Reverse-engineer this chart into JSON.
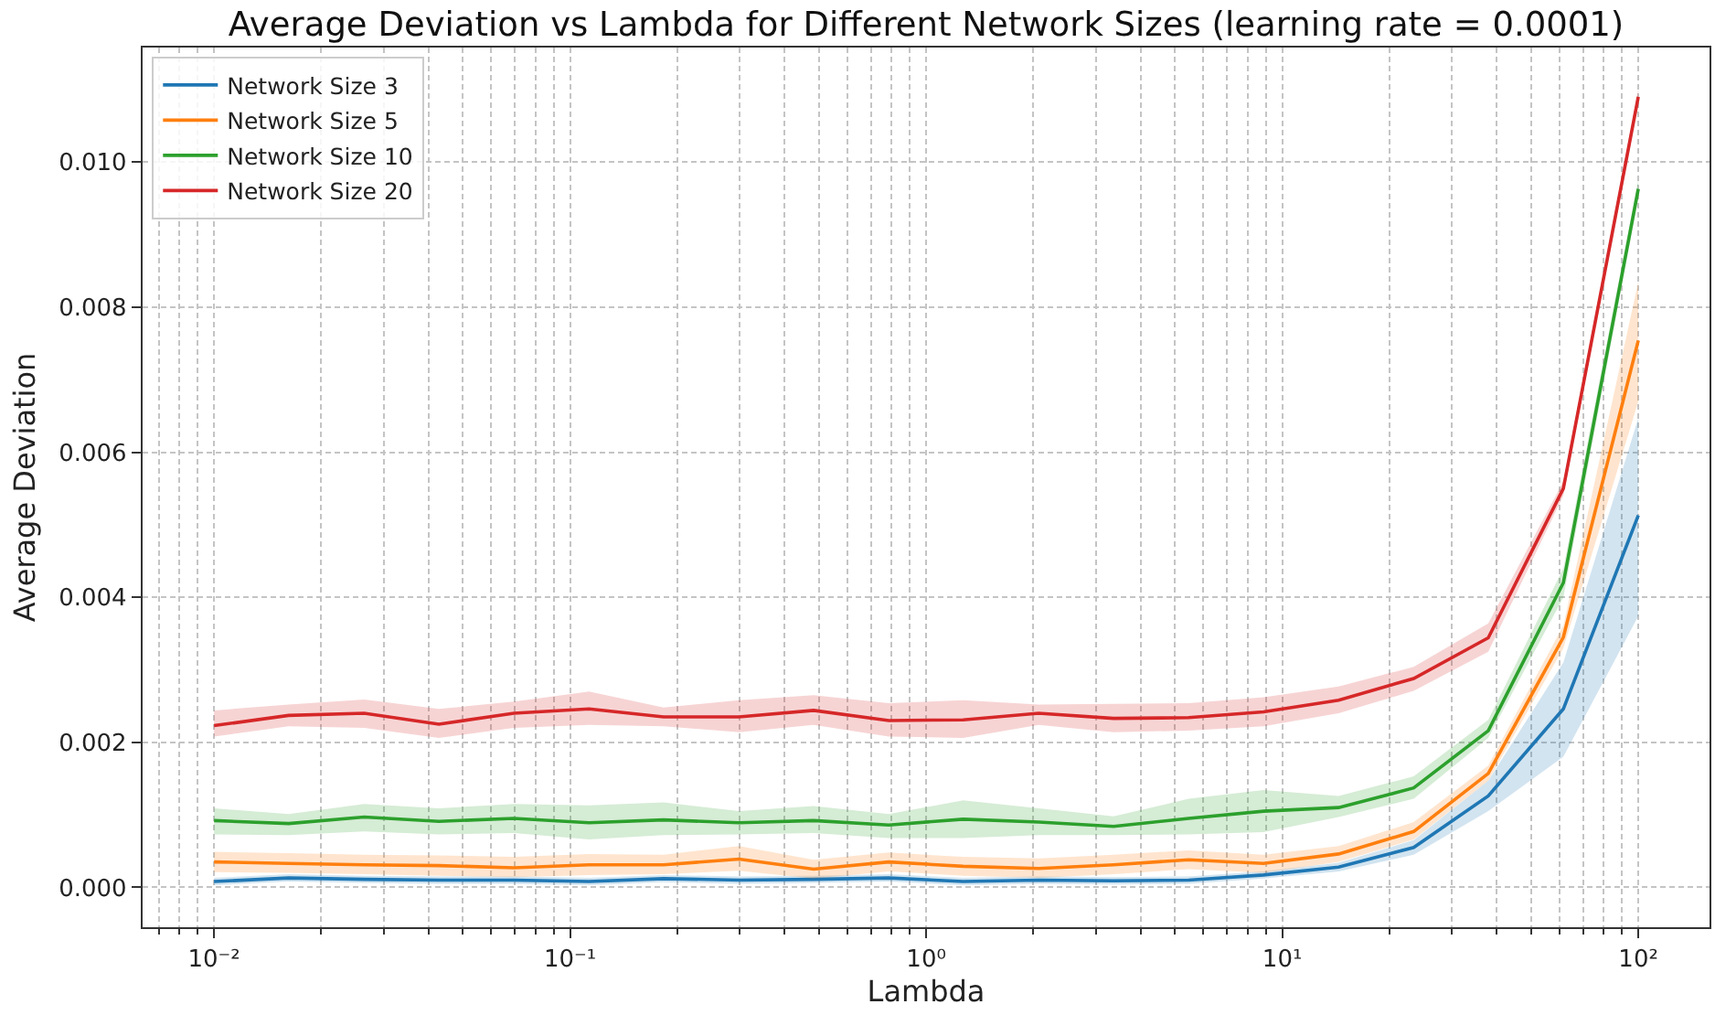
{
  "chart_data": {
    "type": "line",
    "title": "Average Deviation vs Lambda for Different Network Sizes (learning rate = 0.0001)",
    "xlabel": "Lambda",
    "ylabel": "Average Deviation",
    "log": "x",
    "grid": true,
    "legend": "top left",
    "line_style": "solid",
    "xlim": [
      0.0063,
      158.5
    ],
    "ylim": [
      -0.00055,
      0.01158
    ],
    "xticks": [
      {
        "value": 0.01,
        "label": "10⁻²"
      },
      {
        "value": 0.1,
        "label": "10⁻¹"
      },
      {
        "value": 1,
        "label": "10⁰"
      },
      {
        "value": 10,
        "label": "10¹"
      },
      {
        "value": 100,
        "label": "10²"
      },
      {
        "value": 0.007,
        "label": null
      },
      {
        "value": 0.008,
        "label": null
      },
      {
        "value": 0.009,
        "label": null
      },
      {
        "value": 0.02,
        "label": null
      },
      {
        "value": 0.03,
        "label": null
      },
      {
        "value": 0.04,
        "label": null
      },
      {
        "value": 0.05,
        "label": null
      },
      {
        "value": 0.06,
        "label": null
      },
      {
        "value": 0.07,
        "label": null
      },
      {
        "value": 0.08,
        "label": null
      },
      {
        "value": 0.09,
        "label": null
      },
      {
        "value": 0.2,
        "label": null
      },
      {
        "value": 0.3,
        "label": null
      },
      {
        "value": 0.4,
        "label": null
      },
      {
        "value": 0.5,
        "label": null
      },
      {
        "value": 0.6,
        "label": null
      },
      {
        "value": 0.7,
        "label": null
      },
      {
        "value": 0.8,
        "label": null
      },
      {
        "value": 0.9,
        "label": null
      },
      {
        "value": 2,
        "label": null
      },
      {
        "value": 3,
        "label": null
      },
      {
        "value": 4,
        "label": null
      },
      {
        "value": 5,
        "label": null
      },
      {
        "value": 6,
        "label": null
      },
      {
        "value": 7,
        "label": null
      },
      {
        "value": 8,
        "label": null
      },
      {
        "value": 9,
        "label": null
      },
      {
        "value": 20,
        "label": null
      },
      {
        "value": 30,
        "label": null
      },
      {
        "value": 40,
        "label": null
      },
      {
        "value": 50,
        "label": null
      },
      {
        "value": 60,
        "label": null
      },
      {
        "value": 70,
        "label": null
      },
      {
        "value": 80,
        "label": null
      },
      {
        "value": 90,
        "label": null
      }
    ],
    "yticks": [
      {
        "value": 0.0,
        "label": "0.000"
      },
      {
        "value": 0.002,
        "label": "0.002"
      },
      {
        "value": 0.004,
        "label": "0.004"
      },
      {
        "value": 0.006,
        "label": "0.006"
      },
      {
        "value": 0.008,
        "label": "0.008"
      },
      {
        "value": 0.01,
        "label": "0.010"
      }
    ],
    "x": [
      0.01,
      0.0162,
      0.0264,
      0.0428,
      0.0695,
      0.113,
      0.183,
      0.298,
      0.483,
      0.785,
      1.27,
      2.07,
      3.36,
      5.46,
      8.86,
      14.4,
      23.4,
      37.9,
      61.6,
      100
    ],
    "series": [
      {
        "name": "Network Size 3",
        "color": "#1f77b4",
        "values": [
          8e-05,
          0.00013,
          0.00011,
          0.0001,
          0.0001,
          8e-05,
          0.00012,
          0.0001,
          0.00011,
          0.00013,
          8e-05,
          0.0001,
          9e-05,
          0.0001,
          0.00017,
          0.00028,
          0.00055,
          0.00126,
          0.00246,
          0.00513
        ],
        "lower": [
          3e-05,
          8e-05,
          6e-05,
          5e-05,
          5e-05,
          3e-05,
          7e-05,
          5e-05,
          6e-05,
          8e-05,
          3e-05,
          5e-05,
          4e-05,
          5e-05,
          0.00012,
          0.00022,
          0.00045,
          0.00105,
          0.0018,
          0.00374
        ],
        "upper": [
          0.00013,
          0.00018,
          0.00016,
          0.00015,
          0.00015,
          0.00013,
          0.00017,
          0.00015,
          0.00016,
          0.00018,
          0.00013,
          0.00015,
          0.00014,
          0.00015,
          0.00022,
          0.00034,
          0.00065,
          0.00147,
          0.0031,
          0.00647
        ]
      },
      {
        "name": "Network Size 5",
        "color": "#ff7f0e",
        "values": [
          0.00035,
          0.00033,
          0.00031,
          0.0003,
          0.00027,
          0.00031,
          0.00031,
          0.00039,
          0.00025,
          0.00035,
          0.00029,
          0.00026,
          0.00031,
          0.00038,
          0.00033,
          0.00046,
          0.00077,
          0.00157,
          0.00345,
          0.00754
        ],
        "lower": [
          0.00021,
          0.0002,
          0.00018,
          0.00016,
          0.00014,
          0.00017,
          0.00018,
          0.00023,
          0.00012,
          0.00022,
          0.00016,
          0.00013,
          0.00018,
          0.00025,
          0.0002,
          0.00035,
          0.00066,
          0.00147,
          0.0033,
          0.0067
        ],
        "upper": [
          0.00049,
          0.00047,
          0.00045,
          0.00044,
          0.00042,
          0.00046,
          0.00045,
          0.00057,
          0.00038,
          0.00048,
          0.00042,
          0.0004,
          0.00045,
          0.00051,
          0.00045,
          0.00057,
          0.0009,
          0.00168,
          0.00361,
          0.00835
        ]
      },
      {
        "name": "Network Size 10",
        "color": "#2ca02c",
        "values": [
          0.00092,
          0.00088,
          0.00097,
          0.00091,
          0.00095,
          0.00089,
          0.00093,
          0.00089,
          0.00092,
          0.00086,
          0.00094,
          0.0009,
          0.00084,
          0.00095,
          0.00105,
          0.0011,
          0.00137,
          0.00216,
          0.0042,
          0.00963
        ],
        "lower": [
          0.00073,
          0.00072,
          0.00077,
          0.00073,
          0.00075,
          0.00066,
          0.00072,
          0.00073,
          0.00075,
          0.00068,
          0.00068,
          0.00072,
          0.00072,
          0.00073,
          0.00076,
          0.00097,
          0.00122,
          0.00206,
          0.004,
          0.0095
        ],
        "upper": [
          0.00109,
          0.00101,
          0.00115,
          0.00109,
          0.00115,
          0.00113,
          0.00117,
          0.00105,
          0.00112,
          0.00101,
          0.0012,
          0.00109,
          0.00098,
          0.00122,
          0.00134,
          0.00126,
          0.00153,
          0.00231,
          0.0044,
          0.00976
        ]
      },
      {
        "name": "Network Size 20",
        "color": "#d62728",
        "values": [
          0.00223,
          0.00237,
          0.0024,
          0.00225,
          0.0024,
          0.00246,
          0.00235,
          0.00235,
          0.00244,
          0.0023,
          0.00231,
          0.0024,
          0.00233,
          0.00234,
          0.00242,
          0.00258,
          0.00288,
          0.00344,
          0.0055,
          0.0109
        ],
        "lower": [
          0.00208,
          0.00222,
          0.0022,
          0.00206,
          0.0022,
          0.00224,
          0.00222,
          0.00214,
          0.00224,
          0.00208,
          0.00206,
          0.00224,
          0.00214,
          0.00216,
          0.00222,
          0.0024,
          0.00271,
          0.00325,
          0.0054,
          0.0108
        ],
        "upper": [
          0.00244,
          0.00252,
          0.00259,
          0.00246,
          0.00256,
          0.0027,
          0.00248,
          0.00258,
          0.00265,
          0.00254,
          0.00258,
          0.00252,
          0.00253,
          0.00254,
          0.00262,
          0.00277,
          0.00304,
          0.00364,
          0.0056,
          0.011
        ]
      }
    ]
  }
}
